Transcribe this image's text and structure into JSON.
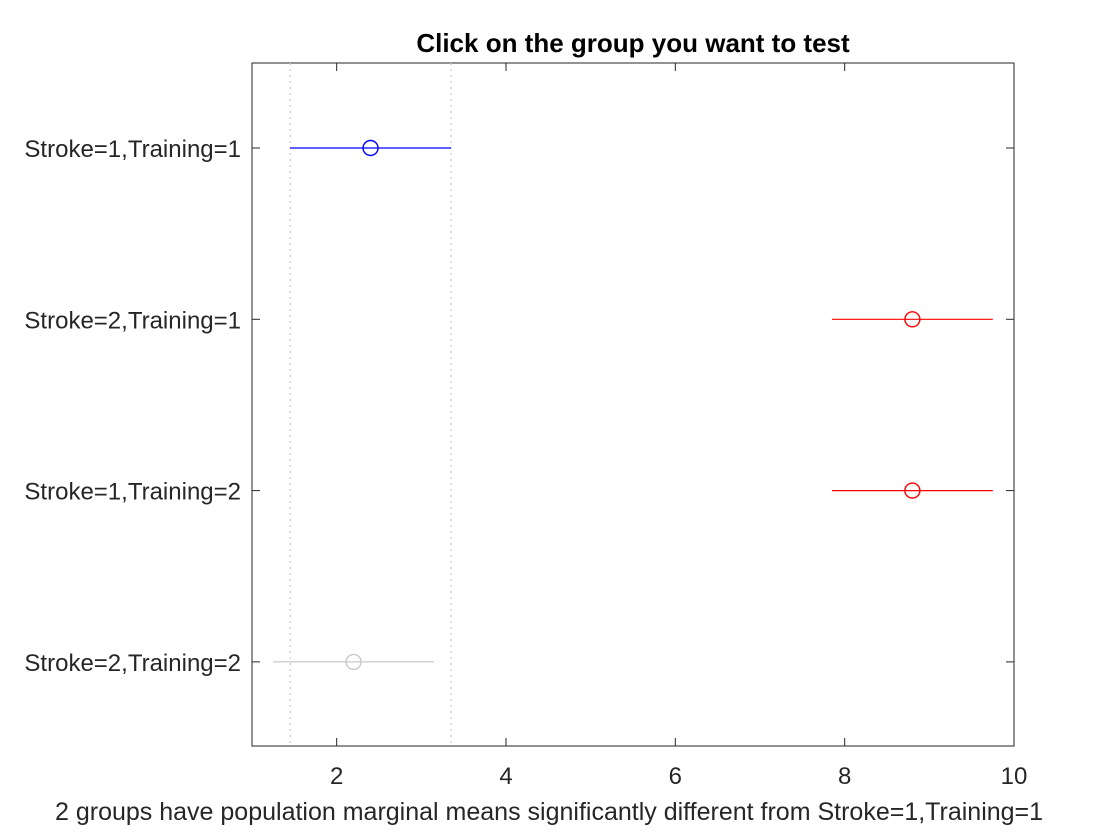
{
  "chart_data": {
    "type": "scatter",
    "title": "Click on the group you want to test",
    "xlabel": "2 groups have population marginal means significantly different from Stroke=1,Training=1",
    "ylabel": "",
    "xlim": [
      1,
      10
    ],
    "xticks": [
      "2",
      "4",
      "6",
      "8",
      "10"
    ],
    "xtick_values": [
      2,
      4,
      6,
      8,
      10
    ],
    "grid": false,
    "reference_interval": {
      "low": 1.45,
      "high": 3.35,
      "style": "dotted",
      "color": "#c8c8c8"
    },
    "groups": [
      {
        "label": "Stroke=1,Training=1",
        "mean": 2.4,
        "low": 1.45,
        "high": 3.35,
        "color": "#0000ff",
        "status": "selected"
      },
      {
        "label": "Stroke=2,Training=1",
        "mean": 8.8,
        "low": 7.85,
        "high": 9.75,
        "color": "#ff0000",
        "status": "significant"
      },
      {
        "label": "Stroke=1,Training=2",
        "mean": 8.8,
        "low": 7.85,
        "high": 9.75,
        "color": "#ff0000",
        "status": "significant"
      },
      {
        "label": "Stroke=2,Training=2",
        "mean": 2.2,
        "low": 1.25,
        "high": 3.15,
        "color": "#c8c8c8",
        "status": "not-significant"
      }
    ]
  }
}
